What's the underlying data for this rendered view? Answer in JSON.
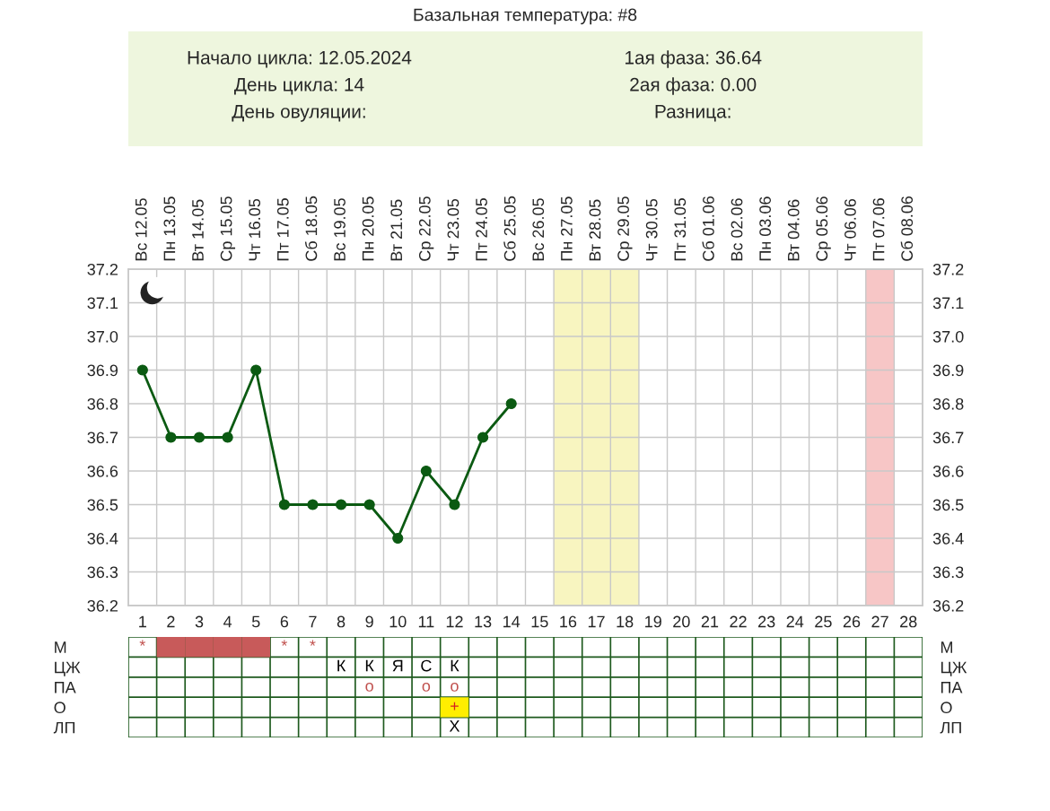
{
  "chart_data": [
    {
      "type": "line",
      "title": "Базальная температура: #8",
      "annotations": [
        "Начало цикла: 12.05.2024",
        "День цикла: 14",
        "День овуляции:",
        "1ая фаза: 36.64",
        "2ая фаза: 0.00",
        "Разница:"
      ],
      "x": [
        1,
        2,
        3,
        4,
        5,
        6,
        7,
        8,
        9,
        10,
        11,
        12,
        13,
        14
      ],
      "series": [
        {
          "color": "#0b5a12",
          "values": [
            36.9,
            36.7,
            36.7,
            36.7,
            36.9,
            36.5,
            36.5,
            36.5,
            36.5,
            36.4,
            36.6,
            36.5,
            36.7,
            36.8
          ]
        }
      ],
      "xlim": [
        0.5,
        28.5
      ],
      "xticks": [
        1,
        2,
        3,
        4,
        5,
        6,
        7,
        8,
        9,
        10,
        11,
        12,
        13,
        14,
        15,
        16,
        17,
        18,
        19,
        20,
        21,
        22,
        23,
        24,
        25,
        26,
        27,
        28
      ],
      "x2lim": [
        "2024-05-11T12:00",
        "2024-06-08T12:00"
      ],
      "x2ticks": [
        {
          "value": "2024-05-12",
          "label": "Вс 12.05"
        },
        {
          "value": "2024-05-13",
          "label": "Пн 13.05"
        },
        {
          "value": "2024-05-14",
          "label": "Вт 14.05"
        },
        {
          "value": "2024-05-15",
          "label": "Ср 15.05"
        },
        {
          "value": "2024-05-16",
          "label": "Чт 16.05"
        },
        {
          "value": "2024-05-17",
          "label": "Пт 17.05"
        },
        {
          "value": "2024-05-18",
          "label": "Сб 18.05"
        },
        {
          "value": "2024-05-19",
          "label": "Вс 19.05"
        },
        {
          "value": "2024-05-20",
          "label": "Пн 20.05"
        },
        {
          "value": "2024-05-21",
          "label": "Вт 21.05"
        },
        {
          "value": "2024-05-22",
          "label": "Ср 22.05"
        },
        {
          "value": "2024-05-23",
          "label": "Чт 23.05"
        },
        {
          "value": "2024-05-24",
          "label": "Пт 24.05"
        },
        {
          "value": "2024-05-25",
          "label": "Сб 25.05"
        },
        {
          "value": "2024-05-26",
          "label": "Вс 26.05"
        },
        {
          "value": "2024-05-27",
          "label": "Пн 27.05"
        },
        {
          "value": "2024-05-28",
          "label": "Вт 28.05"
        },
        {
          "value": "2024-05-29",
          "label": "Ср 29.05"
        },
        {
          "value": "2024-05-30",
          "label": "Чт 30.05"
        },
        {
          "value": "2024-05-31",
          "label": "Пт 31.05"
        },
        {
          "value": "2024-06-01",
          "label": "Сб 01.06"
        },
        {
          "value": "2024-06-02",
          "label": "Вс 02.06"
        },
        {
          "value": "2024-06-03",
          "label": "Пн 03.06"
        },
        {
          "value": "2024-06-04",
          "label": "Вт 04.06"
        },
        {
          "value": "2024-06-05",
          "label": "Ср 05.06"
        },
        {
          "value": "2024-06-06",
          "label": "Чт 06.06"
        },
        {
          "value": "2024-06-07",
          "label": "Пт 07.06"
        },
        {
          "value": "2024-06-08",
          "label": "Сб 08.06"
        }
      ],
      "ylim": [
        36.2,
        37.2
      ],
      "yticks": [
        36.2,
        36.3,
        36.4,
        36.5,
        36.6,
        36.7,
        36.8,
        36.9,
        {
          "value": 37,
          "label": "37.0"
        },
        37.1,
        37.2
      ],
      "y2lim": [
        36.2,
        37.2
      ],
      "y2ticks": [
        36.2,
        36.3,
        36.4,
        36.5,
        36.6,
        36.7,
        36.8,
        36.9,
        {
          "value": 37,
          "label": "37.0"
        },
        37.1,
        37.2
      ],
      "bands": [
        {
          "axis": "x",
          "from": 15.5,
          "to": 18.5,
          "color": "#f8f5c0"
        },
        {
          "axis": "x",
          "from": 26.5,
          "to": 27.5,
          "color": "#f7c6c6"
        }
      ],
      "grid": true,
      "marker": "circle",
      "line_style": "solid",
      "legend": false
    },
    {
      "type": "other",
      "categories": [
        null,
        null,
        null,
        null,
        null,
        null,
        null,
        null,
        null,
        null,
        null,
        null,
        null,
        null,
        null,
        null,
        null,
        null,
        null,
        null,
        null,
        null,
        null,
        null,
        null,
        null,
        null,
        null
      ],
      "y_categories": [
        "М",
        "ЦЖ",
        "ПА",
        "О",
        "ЛП"
      ],
      "y2_categories": [
        "М",
        "ЦЖ",
        "ПА",
        "О",
        "ЛП"
      ],
      "cell_labels": [
        [
          "*",
          null,
          null,
          null,
          null,
          "*",
          "*",
          null,
          null,
          null,
          null,
          null,
          null,
          null,
          null,
          null,
          null,
          null,
          null,
          null,
          null,
          null,
          null,
          null,
          null,
          null,
          null,
          null
        ],
        [
          null,
          null,
          null,
          null,
          null,
          null,
          null,
          "К",
          "К",
          "Я",
          "С",
          "К",
          null,
          null,
          null,
          null,
          null,
          null,
          null,
          null,
          null,
          null,
          null,
          null,
          null,
          null,
          null,
          null
        ],
        [
          null,
          null,
          null,
          null,
          null,
          null,
          null,
          null,
          "о",
          null,
          "о",
          "о",
          null,
          null,
          null,
          null,
          null,
          null,
          null,
          null,
          null,
          null,
          null,
          null,
          null,
          null,
          null,
          null
        ],
        [
          null,
          null,
          null,
          null,
          null,
          null,
          null,
          null,
          null,
          null,
          null,
          "+",
          null,
          null,
          null,
          null,
          null,
          null,
          null,
          null,
          null,
          null,
          null,
          null,
          null,
          null,
          null,
          null
        ],
        [
          null,
          null,
          null,
          null,
          null,
          null,
          null,
          null,
          null,
          null,
          null,
          "Х",
          null,
          null,
          null,
          null,
          null,
          null,
          null,
          null,
          null,
          null,
          null,
          null,
          null,
          null,
          null,
          null
        ]
      ],
      "colors": [
        [
          "#c0504d",
          "#c85a5a",
          "#c85a5a",
          "#c85a5a",
          "#c85a5a",
          "#c0504d",
          "#c0504d",
          null,
          null,
          null,
          null,
          null,
          null,
          null,
          null,
          null,
          null,
          null,
          null,
          null,
          null,
          null,
          null,
          null,
          null,
          null,
          null,
          null
        ],
        [
          null,
          null,
          null,
          null,
          null,
          null,
          null,
          "#000000",
          "#000000",
          "#000000",
          "#000000",
          "#000000",
          null,
          null,
          null,
          null,
          null,
          null,
          null,
          null,
          null,
          null,
          null,
          null,
          null,
          null,
          null,
          null
        ],
        [
          null,
          null,
          null,
          null,
          null,
          null,
          null,
          null,
          "#c0504d",
          null,
          "#c0504d",
          "#c0504d",
          null,
          null,
          null,
          null,
          null,
          null,
          null,
          null,
          null,
          null,
          null,
          null,
          null,
          null,
          null,
          null
        ],
        [
          null,
          null,
          null,
          null,
          null,
          null,
          null,
          null,
          null,
          null,
          null,
          "#ffee00",
          null,
          null,
          null,
          null,
          null,
          null,
          null,
          null,
          null,
          null,
          null,
          null,
          null,
          null,
          null,
          null
        ],
        [
          null,
          null,
          null,
          null,
          null,
          null,
          null,
          null,
          null,
          null,
          null,
          "#000000",
          null,
          null,
          null,
          null,
          null,
          null,
          null,
          null,
          null,
          null,
          null,
          null,
          null,
          null,
          null,
          null
        ]
      ]
    }
  ]
}
